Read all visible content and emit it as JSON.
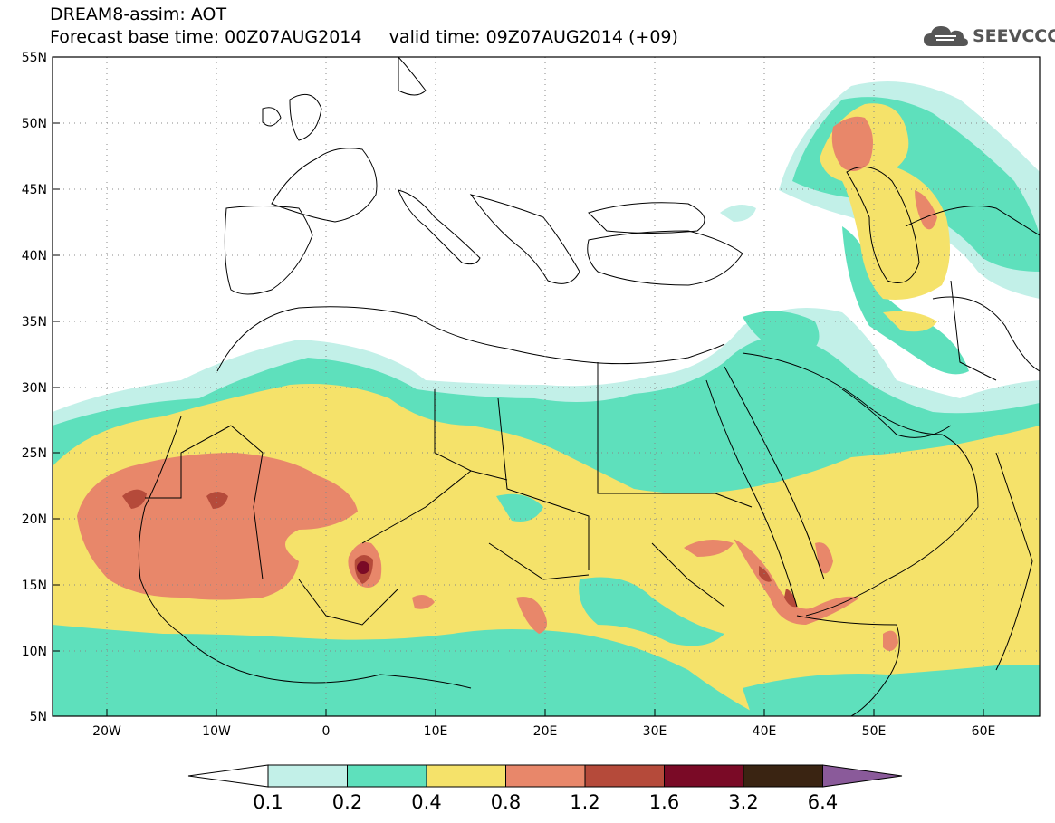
{
  "header": {
    "title_line1": "DREAM8-assim: AOT",
    "title_line2": "Forecast base time: 00Z07AUG2014     valid time: 09Z07AUG2014 (+09)"
  },
  "logo": {
    "text": "SEEVCCC",
    "icon": "cloud-icon",
    "color": "#555555"
  },
  "map": {
    "lon_range": [
      -25,
      65
    ],
    "lat_range": [
      5,
      55
    ],
    "lat_labels": [
      "55N",
      "50N",
      "45N",
      "40N",
      "35N",
      "30N",
      "25N",
      "20N",
      "15N",
      "10N",
      "5N"
    ],
    "lon_labels": [
      "20W",
      "10W",
      "0",
      "10E",
      "20E",
      "30E",
      "40E",
      "50E",
      "60E"
    ],
    "colors": {
      "c01": "#c2f0e8",
      "c02": "#5ee0bc",
      "c04": "#f5e26a",
      "c08": "#e8876a",
      "c12": "#b54a3a",
      "c16": "#7a0a26",
      "c32": "#3a2412",
      "c64": "#8a5a9a",
      "coast": "#000000"
    }
  },
  "colorbar": {
    "labels": [
      "0.1",
      "0.2",
      "0.4",
      "0.8",
      "1.2",
      "1.6",
      "3.2",
      "6.4"
    ],
    "colors": [
      "#ffffff",
      "#c2f0e8",
      "#5ee0bc",
      "#f5e26a",
      "#e8876a",
      "#b54a3a",
      "#7a0a26",
      "#3a2412",
      "#8a5a9a"
    ]
  }
}
